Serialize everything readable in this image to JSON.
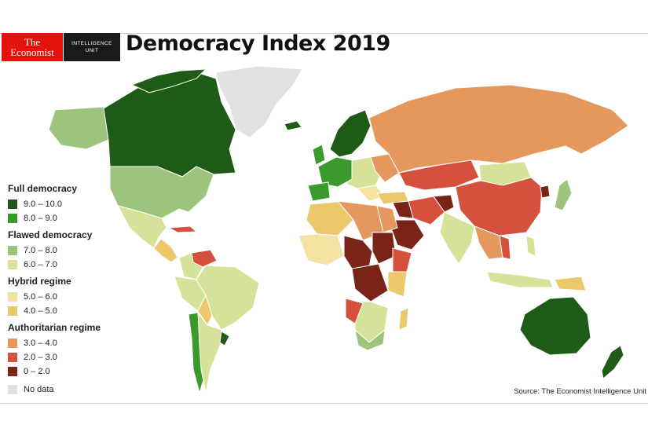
{
  "brand": {
    "line1": "The",
    "line2": "Economist",
    "unit_line1": "INTELLIGENCE",
    "unit_line2": "UNIT"
  },
  "title": "Democracy Index 2019",
  "source": "Source: The Economist Intelligence Unit",
  "legend": {
    "full": {
      "heading": "Full democracy",
      "items": [
        {
          "label": "9.0 – 10.0",
          "color": "#1e5b16"
        },
        {
          "label": "8.0 – 9.0",
          "color": "#3a9a2c"
        }
      ]
    },
    "flawed": {
      "heading": "Flawed democracy",
      "items": [
        {
          "label": "7.0 – 8.0",
          "color": "#9dc47c"
        },
        {
          "label": "6.0 – 7.0",
          "color": "#d5e39a"
        }
      ]
    },
    "hybrid": {
      "heading": "Hybrid regime",
      "items": [
        {
          "label": "5.0 – 6.0",
          "color": "#f3e2a2"
        },
        {
          "label": "4.0 – 5.0",
          "color": "#ecc86a"
        }
      ]
    },
    "auth": {
      "heading": "Authoritarian regime",
      "items": [
        {
          "label": "3.0 – 4.0",
          "color": "#e5985e"
        },
        {
          "label": "2.0 – 3.0",
          "color": "#d6503e"
        },
        {
          "label": "0 – 2.0",
          "color": "#7a2418"
        }
      ]
    },
    "nodata": {
      "label": "No data",
      "color": "#e1e1e1"
    }
  }
}
